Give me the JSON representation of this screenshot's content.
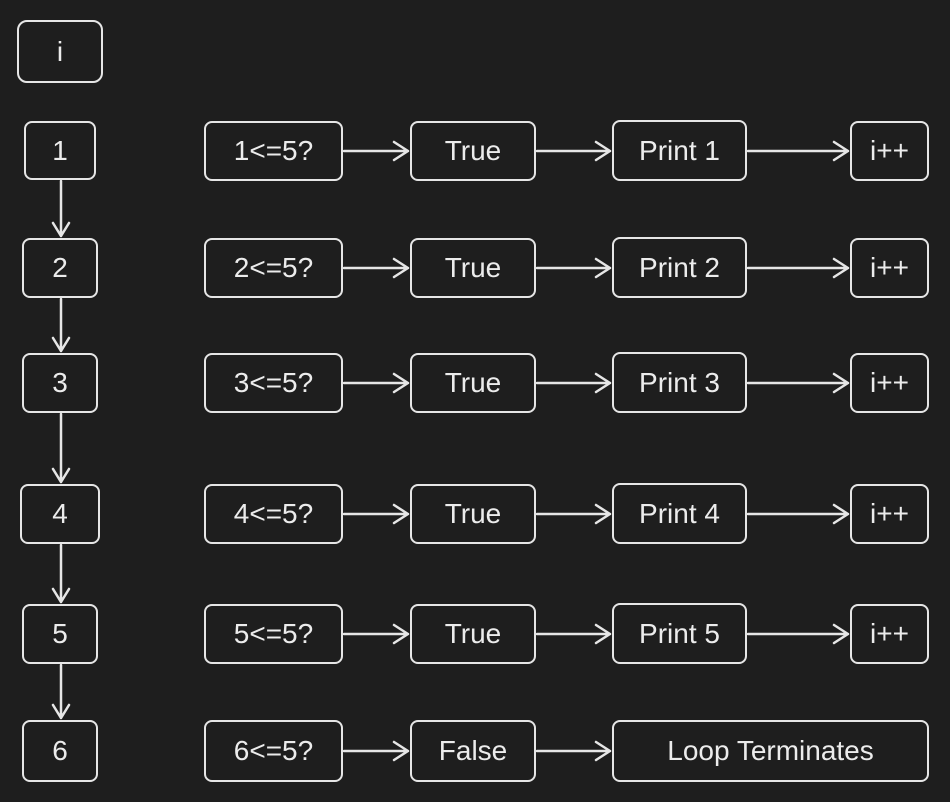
{
  "header": {
    "label": "i"
  },
  "rows": [
    {
      "i": "1",
      "condition": "1<=5?",
      "result": "True",
      "action": "Print 1",
      "increment": "i++"
    },
    {
      "i": "2",
      "condition": "2<=5?",
      "result": "True",
      "action": "Print 2",
      "increment": "i++"
    },
    {
      "i": "3",
      "condition": "3<=5?",
      "result": "True",
      "action": "Print 3",
      "increment": "i++"
    },
    {
      "i": "4",
      "condition": "4<=5?",
      "result": "True",
      "action": "Print 4",
      "increment": "i++"
    },
    {
      "i": "5",
      "condition": "5<=5?",
      "result": "True",
      "action": "Print 5",
      "increment": "i++"
    }
  ],
  "final_row": {
    "i": "6",
    "condition": "6<=5?",
    "result": "False",
    "action": "Loop Terminates"
  },
  "colors": {
    "background": "#1e1e1e",
    "stroke": "#e6e6e6",
    "text": "#ececec"
  }
}
